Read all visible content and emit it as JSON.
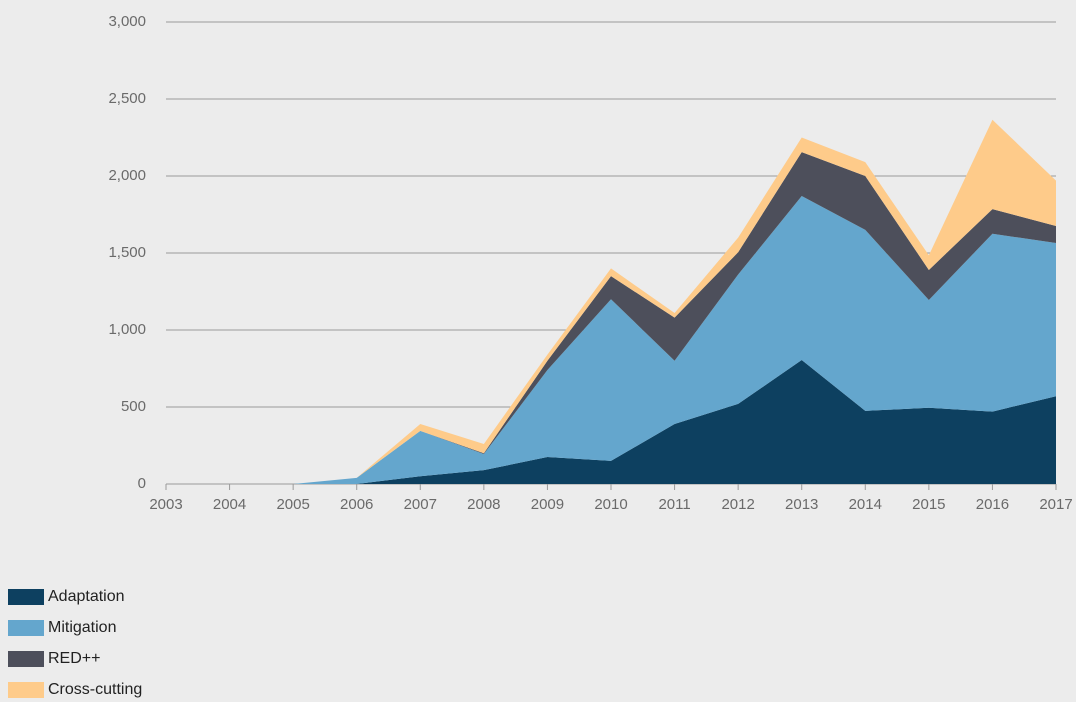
{
  "chart_data": {
    "type": "stacked-area",
    "categories": [
      "2003",
      "2004",
      "2005",
      "2006",
      "2007",
      "2008",
      "2009",
      "2010",
      "2011",
      "2012",
      "2013",
      "2014",
      "2015",
      "2016",
      "2017"
    ],
    "series": [
      {
        "name": "Adaptation",
        "color": "#0d4060",
        "values": [
          0,
          0,
          0,
          0,
          50,
          90,
          175,
          150,
          390,
          520,
          805,
          475,
          495,
          470,
          570
        ]
      },
      {
        "name": "Mitigation",
        "color": "#64a6cd",
        "values": [
          0,
          0,
          0,
          40,
          295,
          105,
          565,
          1050,
          410,
          840,
          1065,
          1175,
          700,
          1155,
          995
        ]
      },
      {
        "name": "RED++",
        "color": "#4d4f5b",
        "values": [
          0,
          0,
          0,
          0,
          0,
          5,
          60,
          150,
          280,
          145,
          285,
          350,
          195,
          160,
          110
        ]
      },
      {
        "name": "Cross-cutting",
        "color": "#fecb8a",
        "values": [
          0,
          0,
          0,
          0,
          45,
          60,
          40,
          50,
          30,
          95,
          95,
          90,
          95,
          580,
          295
        ]
      }
    ],
    "ylim": [
      0,
      3000
    ],
    "yticks": [
      0,
      500,
      {
        "value": 1000,
        "label": "1,000"
      },
      {
        "value": 1500,
        "label": "1,500"
      },
      {
        "value": 2000,
        "label": "2,000"
      },
      {
        "value": 2500,
        "label": "2,500"
      },
      {
        "value": 3000,
        "label": "3,000"
      }
    ],
    "grid": true,
    "legend": "bottom-left"
  }
}
